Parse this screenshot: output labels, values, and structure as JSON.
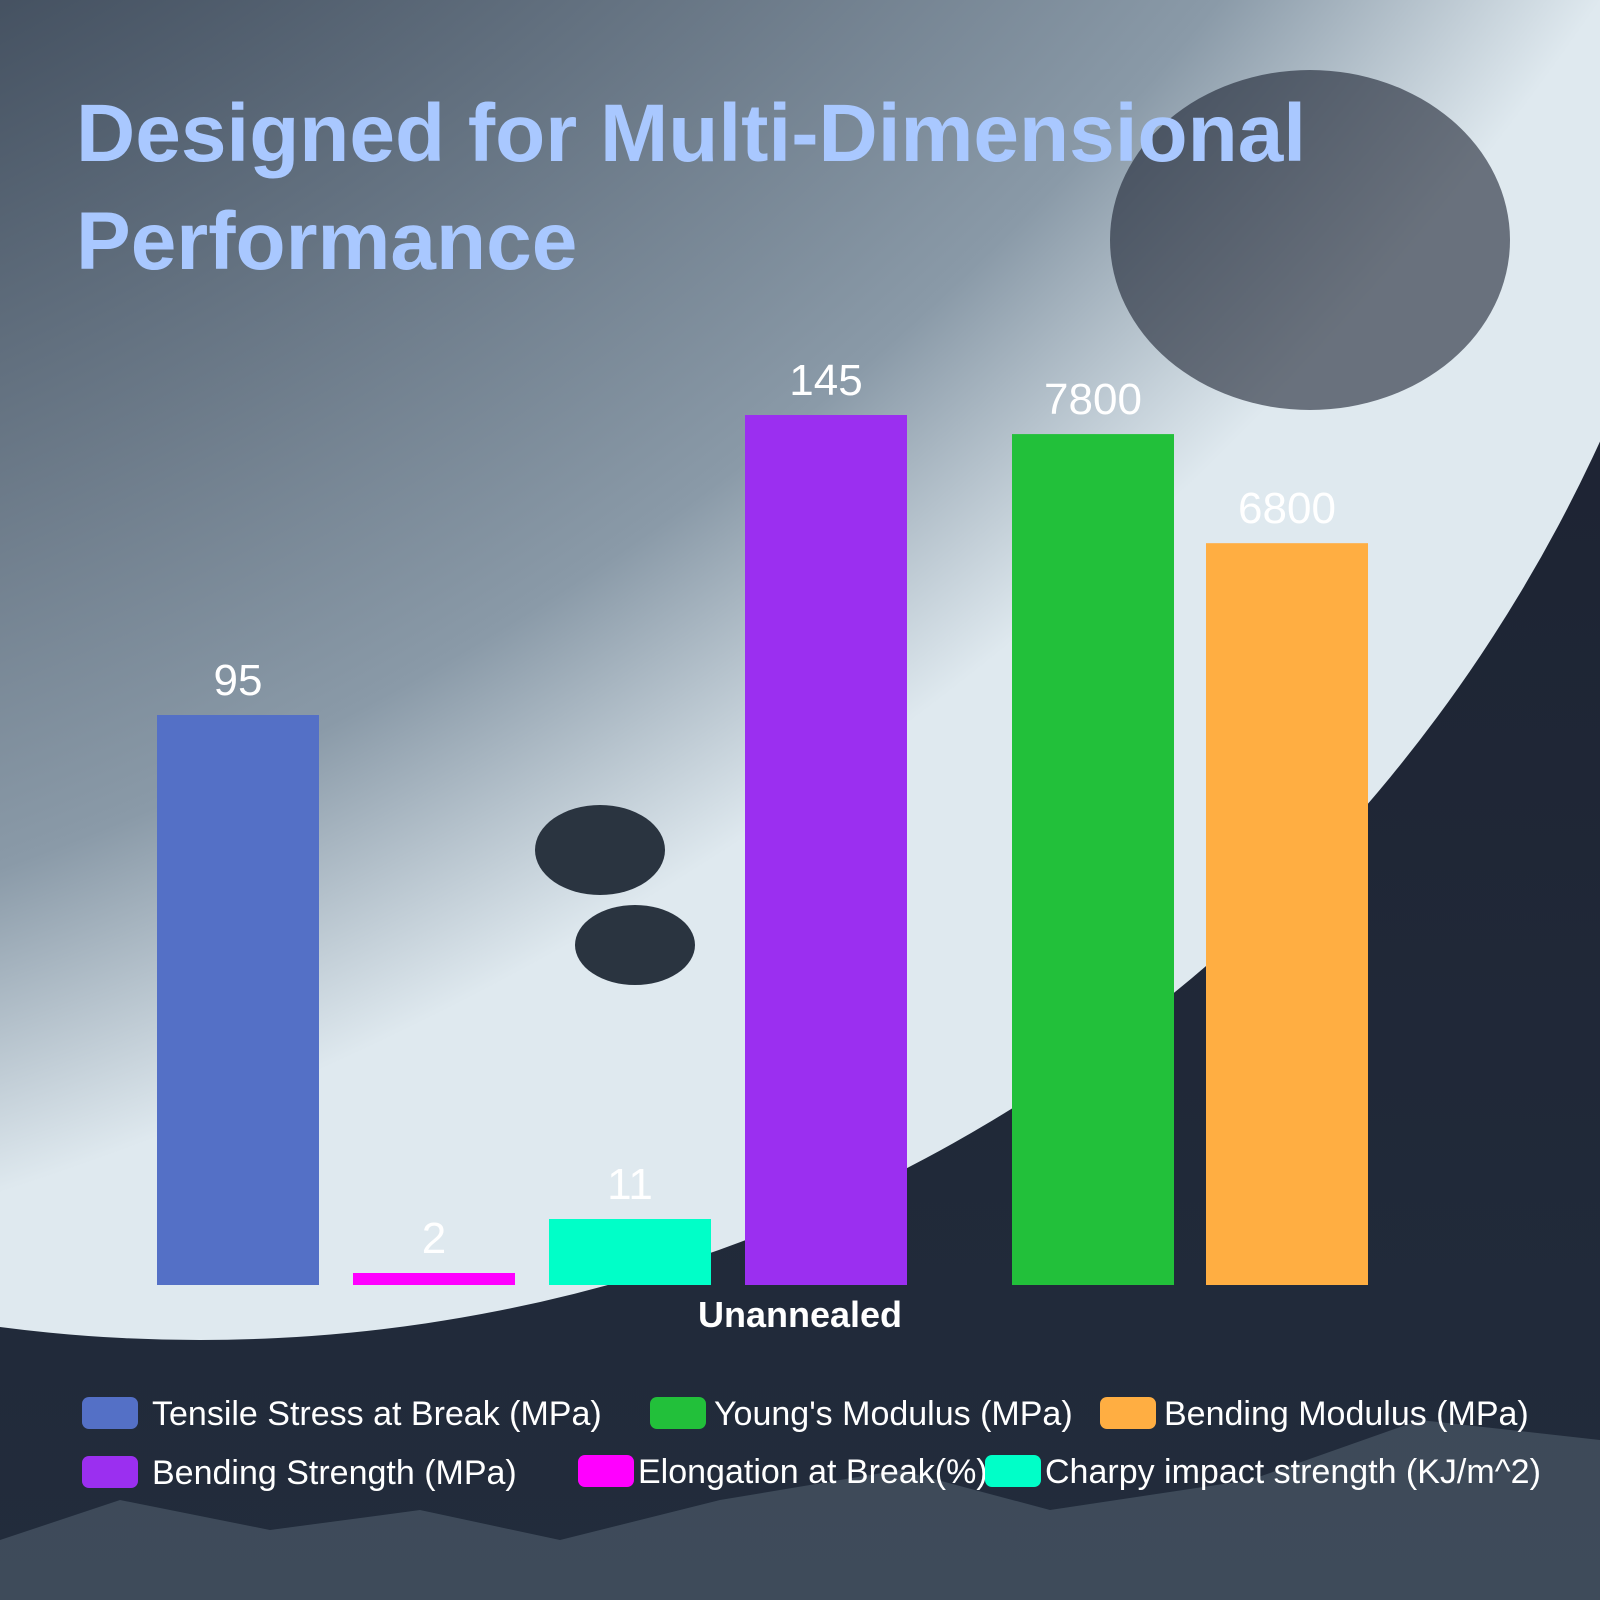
{
  "chart_data": {
    "type": "bar",
    "title": "Designed for Multi-Dimensional Performance",
    "categories": [
      "Unannealed"
    ],
    "ylim": [
      0,
      160
    ],
    "y2lim": [
      0,
      8800
    ],
    "series": [
      {
        "name": "Tensile Stress at Break (MPa)",
        "color": "#5470c6",
        "values": [
          95
        ]
      },
      {
        "name": "Elongation at Break(%)",
        "color": "#ff00ff",
        "values": [
          2
        ]
      },
      {
        "name": "Charpy impact strength (KJ/m^2)",
        "color": "#00ffc8",
        "values": [
          11
        ]
      },
      {
        "name": "Bending Strength (MPa)",
        "color": "#9b2ff0",
        "values": [
          145
        ]
      },
      {
        "name": "Young's Modulus (MPa)",
        "color": "#22c03a",
        "values": [
          7800
        ],
        "axis": "y2"
      },
      {
        "name": "Bending Modulus (MPa)",
        "color": "#ffae42",
        "values": [
          6800
        ],
        "axis": "y2"
      }
    ]
  }
}
